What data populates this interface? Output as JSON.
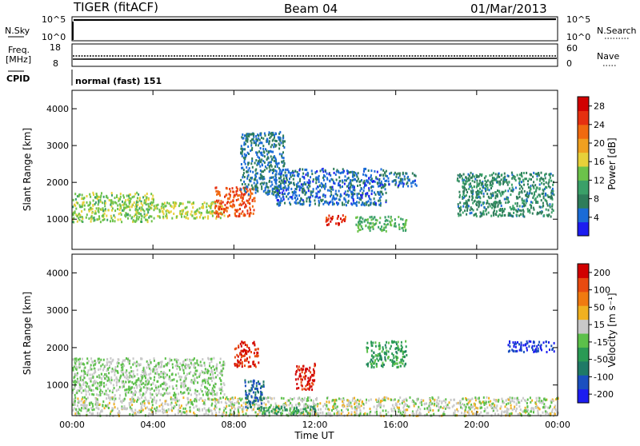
{
  "header": {
    "radar": "TIGER (fitACF)",
    "beam": "Beam 04",
    "date": "01/Mar/2013"
  },
  "top_panels": {
    "nsky_label": "N.Sky",
    "nsearch_label": "N.Search",
    "nsky_ticks": [
      "10^5",
      "10^0"
    ],
    "nsearch_ticks": [
      "10^5",
      "10^0"
    ],
    "freq_label_1": "Freq.",
    "freq_label_2": "[MHz]",
    "freq_ticks": [
      "18",
      "8"
    ],
    "nave_label": "Nave",
    "nave_ticks": [
      "60",
      "0"
    ],
    "cpid_label": "CPID",
    "cpid_value": "normal (fast) 151"
  },
  "colors": {
    "power_scale": [
      "#1c1cf0",
      "#1a6bd6",
      "#2e7d5a",
      "#3aa068",
      "#6cc24a",
      "#e7d03a",
      "#f0a020",
      "#f06a10",
      "#e63010",
      "#d10000"
    ],
    "velocity_scale": [
      "#1c1cf0",
      "#1a4fbf",
      "#1f7a66",
      "#2a9a54",
      "#5cc04a",
      "#c8c8c8",
      "#f0b020",
      "#f07a10",
      "#e84a10",
      "#d10000"
    ]
  },
  "chart_data": [
    {
      "type": "heatmap",
      "title": "",
      "xlabel": "Time UT",
      "ylabel": "Slant Range [km]",
      "x_ticks": [
        "00:00",
        "04:00",
        "08:00",
        "12:00",
        "16:00",
        "20:00",
        "00:00"
      ],
      "x_range_hours": [
        0,
        24
      ],
      "y_ticks": [
        "1000",
        "2000",
        "3000",
        "4000"
      ],
      "ylim": [
        180,
        4500
      ],
      "colorbar": {
        "label": "Power [dB]",
        "range": [
          0,
          30
        ],
        "ticks": [
          "4",
          "8",
          "12",
          "16",
          "20",
          "24",
          "28"
        ]
      },
      "features": [
        {
          "t": [
            0.0,
            4.0
          ],
          "range": [
            950,
            1750
          ],
          "value_db": 14
        },
        {
          "t": [
            4.0,
            7.5
          ],
          "range": [
            1050,
            1500
          ],
          "value_db": 15
        },
        {
          "t": [
            7.0,
            9.0
          ],
          "range": [
            1100,
            1900
          ],
          "value_db": 24
        },
        {
          "t": [
            8.3,
            10.5
          ],
          "range": [
            1700,
            3400
          ],
          "value_db": 6
        },
        {
          "t": [
            10.0,
            15.5
          ],
          "range": [
            1400,
            2400
          ],
          "value_db": 5
        },
        {
          "t": [
            12.5,
            13.5
          ],
          "range": [
            850,
            1150
          ],
          "value_db": 26
        },
        {
          "t": [
            14.0,
            16.5
          ],
          "range": [
            700,
            1100
          ],
          "value_db": 12
        },
        {
          "t": [
            15.5,
            17.0
          ],
          "range": [
            1900,
            2300
          ],
          "value_db": 5
        },
        {
          "t": [
            19.0,
            23.8
          ],
          "range": [
            1100,
            2300
          ],
          "value_db": 8
        }
      ]
    },
    {
      "type": "heatmap",
      "title": "",
      "xlabel": "Time UT",
      "ylabel": "Slant Range [km]",
      "x_ticks": [
        "00:00",
        "04:00",
        "08:00",
        "12:00",
        "16:00",
        "20:00",
        "00:00"
      ],
      "x_range_hours": [
        0,
        24
      ],
      "y_ticks": [
        "1000",
        "2000",
        "3000",
        "4000"
      ],
      "ylim": [
        180,
        4500
      ],
      "colorbar": {
        "label": "Velocity [m s⁻¹]",
        "range": [
          -250,
          250
        ],
        "ticks": [
          "200",
          "100",
          "50",
          "15",
          "-15",
          "-50",
          "-100",
          "-200"
        ]
      },
      "features": [
        {
          "t": [
            0.0,
            7.5
          ],
          "range": [
            750,
            1750
          ],
          "value_ms": 0
        },
        {
          "t": [
            0.0,
            24.0
          ],
          "range": [
            200,
            700
          ],
          "value_ms": 20
        },
        {
          "t": [
            8.0,
            9.2
          ],
          "range": [
            1500,
            2200
          ],
          "value_ms": 200
        },
        {
          "t": [
            8.5,
            9.5
          ],
          "range": [
            400,
            1200
          ],
          "value_ms": -150
        },
        {
          "t": [
            9.0,
            12.0
          ],
          "range": [
            250,
            450
          ],
          "value_ms": -80
        },
        {
          "t": [
            11.0,
            12.0
          ],
          "range": [
            900,
            1600
          ],
          "value_ms": 220
        },
        {
          "t": [
            14.5,
            16.5
          ],
          "range": [
            1500,
            2200
          ],
          "value_ms": -70
        },
        {
          "t": [
            21.5,
            23.8
          ],
          "range": [
            1900,
            2200
          ],
          "value_ms": -200
        }
      ]
    }
  ]
}
